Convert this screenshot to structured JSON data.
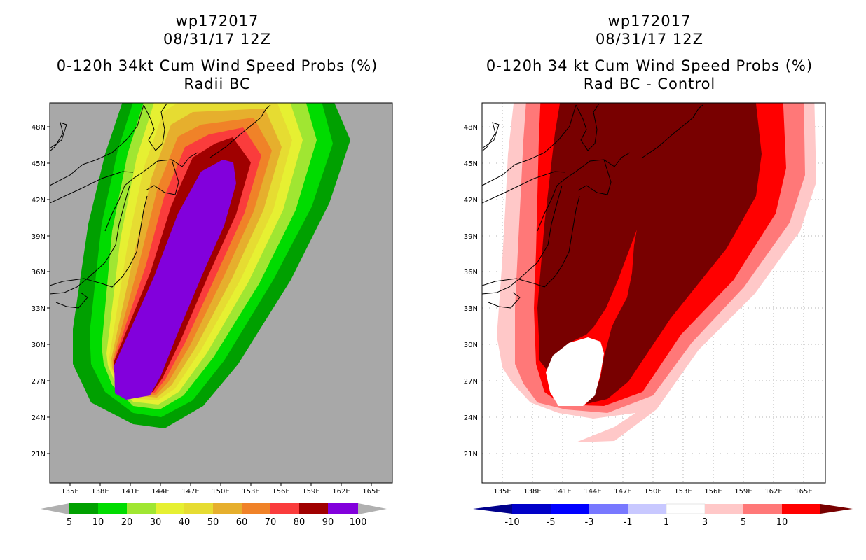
{
  "left": {
    "title_line1": "wp172017",
    "title_line2": "08/31/17 12Z",
    "title_line3": "0-120h 34kt Cum Wind Speed Probs (%)",
    "title_line4": "Radii BC"
  },
  "right": {
    "title_line1": "wp172017",
    "title_line2": "08/31/17 12Z",
    "title_line3": "0-120h 34 kt Cum Wind Speed Probs (%)",
    "title_line4": "Rad BC - Control"
  },
  "axes": {
    "x_ticks": [
      "135E",
      "138E",
      "141E",
      "144E",
      "147E",
      "150E",
      "153E",
      "156E",
      "159E",
      "162E",
      "165E"
    ],
    "y_ticks": [
      "48N",
      "45N",
      "42N",
      "39N",
      "36N",
      "33N",
      "30N",
      "27N",
      "24N",
      "21N"
    ]
  },
  "left_colorbar": {
    "labels": [
      "5",
      "10",
      "20",
      "30",
      "40",
      "50",
      "60",
      "70",
      "80",
      "90",
      "100"
    ],
    "colors": [
      "#00a000",
      "#00dc00",
      "#a0e632",
      "#e6f032",
      "#e6dc32",
      "#e6af2d",
      "#f08228",
      "#fa3c3c",
      "#a00000",
      "#8200dc"
    ],
    "below_color": "#b0b0b0",
    "above_color": "#b0b0b0"
  },
  "right_colorbar": {
    "labels": [
      "-10",
      "-5",
      "-3",
      "-1",
      "1",
      "3",
      "5",
      "10"
    ],
    "colors": [
      "#0000c8",
      "#0000ff",
      "#7878ff",
      "#c8c8ff",
      "#ffffff",
      "#ffc8c8",
      "#ff7878",
      "#ff0000"
    ],
    "below_color": "#00008c",
    "above_color": "#780000"
  },
  "colors": {
    "left_background": "#a8a8a8",
    "gray_land": "#a8a8a8"
  }
}
